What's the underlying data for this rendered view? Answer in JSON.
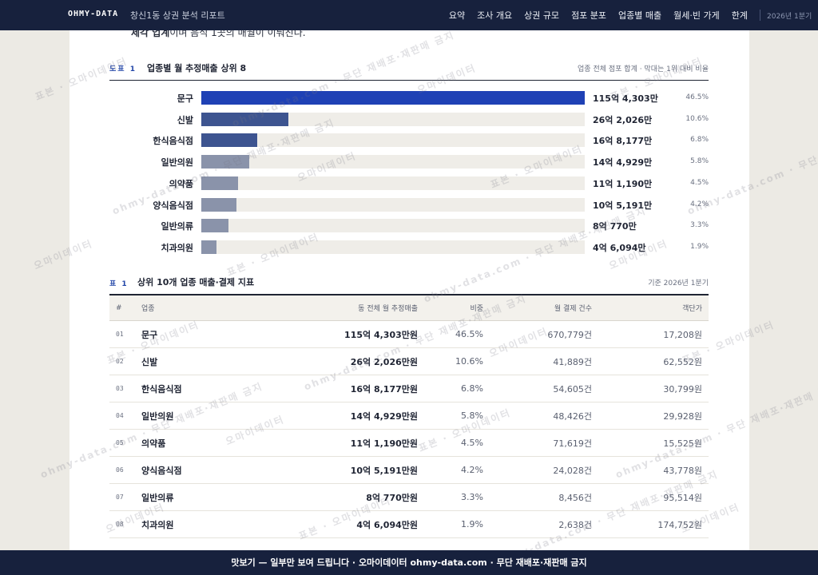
{
  "header": {
    "brand": "OHMY-DATA",
    "report_title": "창신1동 상권 분석 리포트",
    "nav": [
      "요약",
      "조사 개요",
      "상권 규모",
      "점포 분포",
      "업종별 매출",
      "월세·빈 가게",
      "한계"
    ],
    "period": "2026년 1분기"
  },
  "intro_text": {
    "bold": "제각 업계",
    "rest": "이며 음식 1곳의 매월이 이뤄진다."
  },
  "figure": {
    "tag": "도표 1",
    "title": "업종별 월 추정매출 상위 8",
    "note": "업종 전체 점포 합계 · 막대는 1위 대비 비율"
  },
  "chart_data": {
    "type": "bar",
    "categories": [
      "문구",
      "신발",
      "한식음식점",
      "일반의원",
      "의약품",
      "양식음식점",
      "일반의류",
      "치과의원"
    ],
    "values": [
      115.4303,
      26.2026,
      16.8177,
      14.4929,
      11.119,
      10.5191,
      8.077,
      4.6094
    ],
    "value_labels": [
      "115억 4,303만",
      "26억 2,026만",
      "16억 8,177만",
      "14억 4,929만",
      "11억 1,190만",
      "10억 5,191만",
      "8억 770만",
      "4억 6,094만"
    ],
    "share_labels": [
      "46.5%",
      "10.6%",
      "6.8%",
      "5.8%",
      "4.5%",
      "4.2%",
      "3.3%",
      "1.9%"
    ],
    "colors": [
      "#1f41b5",
      "#3d5490",
      "#3d5490",
      "#8a93aa",
      "#8a93aa",
      "#8a93aa",
      "#8a93aa",
      "#8a93aa"
    ]
  },
  "table": {
    "tag": "표 1",
    "title": "상위 10개 업종 매출·결제 지표",
    "note": "기준 2026년 1분기",
    "columns": [
      "#",
      "업종",
      "동 전체 월 추정매출",
      "비중",
      "월 결제 건수",
      "객단가"
    ],
    "rows": [
      {
        "no": "01",
        "name": "문구",
        "sales": "115억 4,303만원",
        "share": "46.5%",
        "count": "670,779건",
        "avg": "17,208원"
      },
      {
        "no": "02",
        "name": "신발",
        "sales": "26억 2,026만원",
        "share": "10.6%",
        "count": "41,889건",
        "avg": "62,552원"
      },
      {
        "no": "03",
        "name": "한식음식점",
        "sales": "16억 8,177만원",
        "share": "6.8%",
        "count": "54,605건",
        "avg": "30,799원"
      },
      {
        "no": "04",
        "name": "일반의원",
        "sales": "14억 4,929만원",
        "share": "5.8%",
        "count": "48,426건",
        "avg": "29,928원"
      },
      {
        "no": "05",
        "name": "의약품",
        "sales": "11억 1,190만원",
        "share": "4.5%",
        "count": "71,619건",
        "avg": "15,525원"
      },
      {
        "no": "06",
        "name": "양식음식점",
        "sales": "10억 5,191만원",
        "share": "4.2%",
        "count": "24,028건",
        "avg": "43,778원"
      },
      {
        "no": "07",
        "name": "일반의류",
        "sales": "8억 770만원",
        "share": "3.3%",
        "count": "8,456건",
        "avg": "95,514원"
      },
      {
        "no": "08",
        "name": "치과의원",
        "sales": "4억 6,094만원",
        "share": "1.9%",
        "count": "2,638건",
        "avg": "174,752원"
      }
    ]
  },
  "watermark": [
    "표본 · 오마이데이터",
    "ohmy-data.com · 무단 재배포·재판매 금지",
    "오마이데이터"
  ],
  "footer": "맛보기 — 일부만 보여 드립니다 · 오마이데이터 ohmy-data.com · 무단 재배포·재판매 금지"
}
